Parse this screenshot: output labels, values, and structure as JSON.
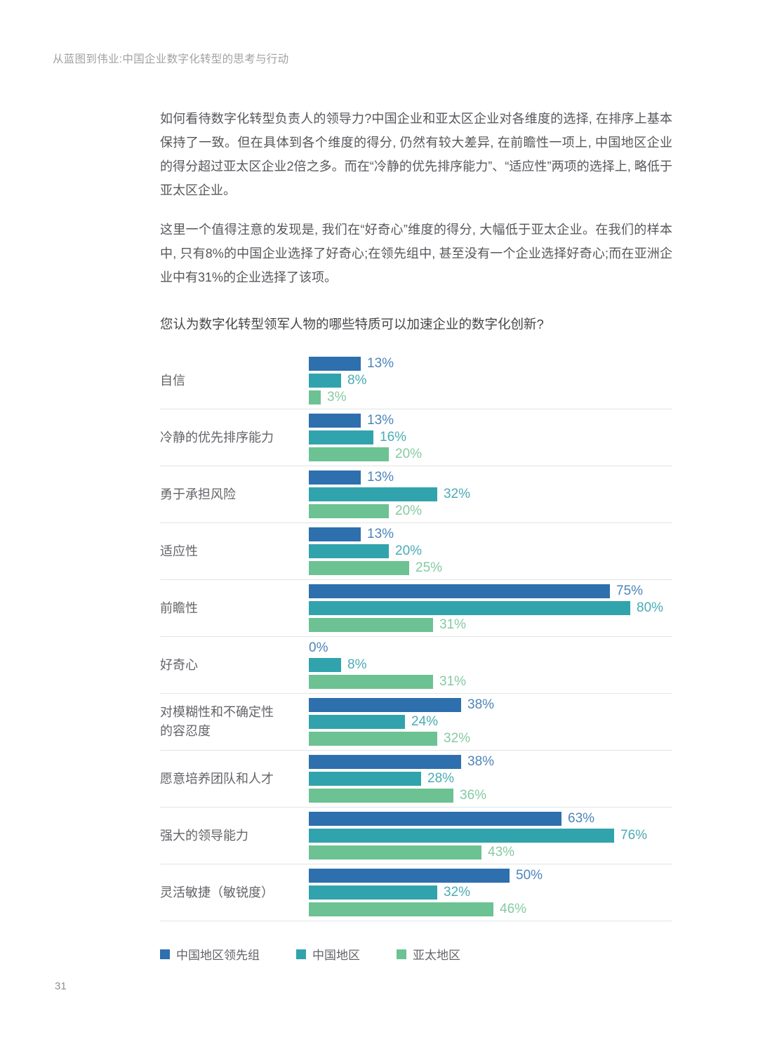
{
  "page": {
    "running_header": "从蓝图到伟业:中国企业数字化转型的思考与行动",
    "page_number": "31"
  },
  "article": {
    "paragraphs": [
      "如何看待数字化转型负责人的领导力?中国企业和亚太区企业对各维度的选择, 在排序上基本保持了一致。但在具体到各个维度的得分, 仍然有较大差异, 在前瞻性一项上, 中国地区企业的得分超过亚太区企业2倍之多。而在“冷静的优先排序能力”、“适应性”两项的选择上, 略低于亚太区企业。",
      "这里一个值得注意的发现是, 我们在“好奇心”维度的得分, 大幅低于亚太企业。在我们的样本中, 只有8%的中国企业选择了好奇心;在领先组中, 甚至没有一个企业选择好奇心;而在亚洲企业中有31%的企业选择了该项。"
    ]
  },
  "chart_data": {
    "type": "bar",
    "orientation": "horizontal",
    "title": "您认为数字化转型领军人物的哪些特质可以加速企业的数字化创新?",
    "categories": [
      "自信",
      "冷静的优先排序能力",
      "勇于承担风险",
      "适应性",
      "前瞻性",
      "好奇心",
      "对模糊性和不确定性的容忍度",
      "愿意培养团队和人才",
      "强大的领导能力",
      "灵活敏捷（敏锐度）"
    ],
    "series": [
      {
        "name": "中国地区领先组",
        "color": "#2e6fae",
        "label_color": "#4d84ba",
        "values": [
          13,
          13,
          13,
          13,
          75,
          0,
          38,
          38,
          63,
          50
        ]
      },
      {
        "name": "中国地区",
        "color": "#31a3ad",
        "label_color": "#4aabb4",
        "values": [
          8,
          16,
          32,
          20,
          80,
          8,
          24,
          28,
          76,
          32
        ]
      },
      {
        "name": "亚太地区",
        "color": "#6cc292",
        "label_color": "#85caa2",
        "values": [
          3,
          20,
          20,
          25,
          31,
          31,
          32,
          36,
          43,
          46
        ]
      }
    ],
    "value_suffix": "%",
    "xlim": [
      0,
      100
    ],
    "grid": false,
    "legend_position": "bottom"
  }
}
